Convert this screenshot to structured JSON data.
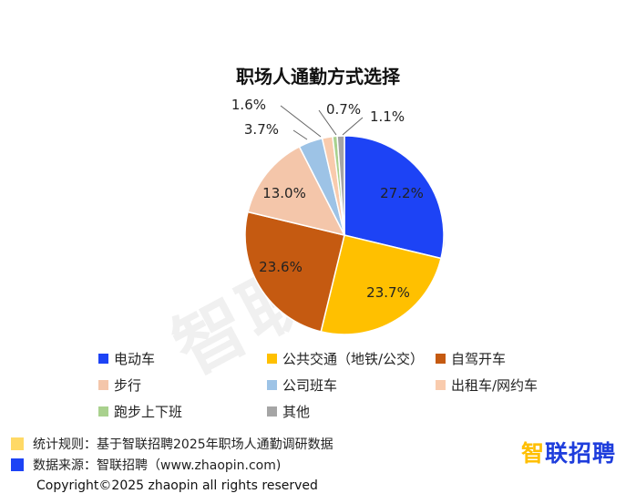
{
  "chart_data": {
    "type": "pie",
    "title": "职场人通勤方式选择",
    "slices": [
      {
        "label": "电动车",
        "value": 27.2,
        "value_label": "27.2%",
        "color": "#1d43f5"
      },
      {
        "label": "公共交通（地铁/公交）",
        "value": 23.7,
        "value_label": "23.7%",
        "color": "#ffc000"
      },
      {
        "label": "自驾开车",
        "value": 23.6,
        "value_label": "23.6%",
        "color": "#c55a11"
      },
      {
        "label": "步行",
        "value": 13.0,
        "value_label": "13.0%",
        "color": "#f4c6aa"
      },
      {
        "label": "公司班车",
        "value": 3.7,
        "value_label": "3.7%",
        "color": "#9dc3e6"
      },
      {
        "label": "出租车/网约车",
        "value": 1.6,
        "value_label": "1.6%",
        "color": "#f9cbad"
      },
      {
        "label": "跑步上下班",
        "value": 0.7,
        "value_label": "0.7%",
        "color": "#a9d18e"
      },
      {
        "label": "其他",
        "value": 1.1,
        "value_label": "1.1%",
        "color": "#a5a5a5"
      }
    ],
    "legend_position": "bottom"
  },
  "watermark": "智联招聘",
  "notes": [
    {
      "text": "统计规则：基于智联招聘2025年职场人通勤调研数据",
      "color": "#ffd966"
    },
    {
      "text": "数据来源：智联招聘（www.zhaopin.com)",
      "color": "#1d43f5"
    }
  ],
  "brand": {
    "name_pre": "智",
    "name_post": "联招聘"
  },
  "copyright": "Copyright©2025 zhaopin all rights reserved"
}
